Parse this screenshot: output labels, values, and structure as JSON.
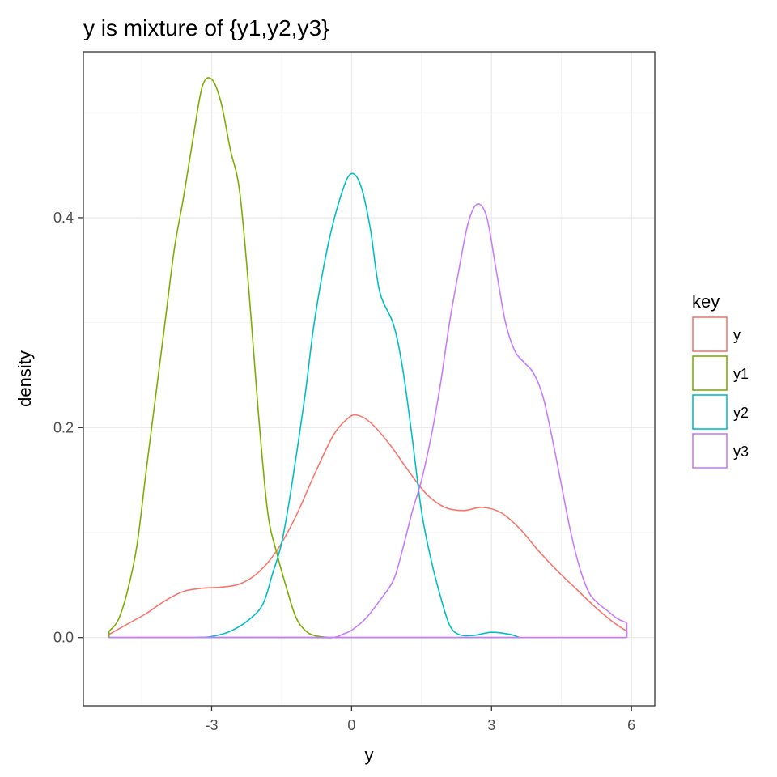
{
  "chart_data": {
    "type": "line",
    "title": "y is mixture of {y1,y2,y3}",
    "xlabel": "y",
    "ylabel": "density",
    "xlim": [
      -5.75,
      6.5
    ],
    "ylim": [
      -0.065,
      0.558
    ],
    "x_ticks": [
      -3,
      0,
      3,
      6
    ],
    "x_tick_labels": [
      "-3",
      "0",
      "3",
      "6"
    ],
    "y_ticks": [
      0.0,
      0.2,
      0.4
    ],
    "y_tick_labels": [
      "0.0",
      "0.2",
      "0.4"
    ],
    "grid": true,
    "legend": {
      "title": "key",
      "position": "right"
    },
    "series": [
      {
        "name": "y",
        "color": "#F8766D",
        "points": [
          [
            -5.2,
            0.003
          ],
          [
            -4.8,
            0.013
          ],
          [
            -4.4,
            0.023
          ],
          [
            -4.0,
            0.035
          ],
          [
            -3.6,
            0.044
          ],
          [
            -3.2,
            0.047
          ],
          [
            -2.8,
            0.048
          ],
          [
            -2.4,
            0.051
          ],
          [
            -2.0,
            0.062
          ],
          [
            -1.6,
            0.083
          ],
          [
            -1.2,
            0.115
          ],
          [
            -0.8,
            0.155
          ],
          [
            -0.4,
            0.192
          ],
          [
            -0.1,
            0.208
          ],
          [
            0.1,
            0.212
          ],
          [
            0.4,
            0.205
          ],
          [
            0.8,
            0.185
          ],
          [
            1.2,
            0.16
          ],
          [
            1.6,
            0.137
          ],
          [
            2.0,
            0.124
          ],
          [
            2.4,
            0.121
          ],
          [
            2.8,
            0.124
          ],
          [
            3.2,
            0.119
          ],
          [
            3.6,
            0.104
          ],
          [
            4.0,
            0.083
          ],
          [
            4.4,
            0.064
          ],
          [
            4.8,
            0.047
          ],
          [
            5.2,
            0.03
          ],
          [
            5.6,
            0.015
          ],
          [
            5.9,
            0.006
          ]
        ]
      },
      {
        "name": "y1",
        "color": "#7CAE00",
        "points": [
          [
            -5.2,
            0.006
          ],
          [
            -5.0,
            0.017
          ],
          [
            -4.8,
            0.045
          ],
          [
            -4.6,
            0.088
          ],
          [
            -4.4,
            0.16
          ],
          [
            -4.2,
            0.23
          ],
          [
            -4.0,
            0.3
          ],
          [
            -3.8,
            0.37
          ],
          [
            -3.6,
            0.42
          ],
          [
            -3.4,
            0.475
          ],
          [
            -3.2,
            0.525
          ],
          [
            -3.0,
            0.532
          ],
          [
            -2.8,
            0.51
          ],
          [
            -2.6,
            0.465
          ],
          [
            -2.4,
            0.425
          ],
          [
            -2.2,
            0.33
          ],
          [
            -2.0,
            0.215
          ],
          [
            -1.8,
            0.12
          ],
          [
            -1.6,
            0.08
          ],
          [
            -1.4,
            0.048
          ],
          [
            -1.2,
            0.02
          ],
          [
            -1.0,
            0.007
          ],
          [
            -0.8,
            0.002
          ],
          [
            -0.5,
            0.0
          ]
        ]
      },
      {
        "name": "y2",
        "color": "#00BFC4",
        "points": [
          [
            -3.3,
            0.0
          ],
          [
            -3.0,
            0.001
          ],
          [
            -2.6,
            0.006
          ],
          [
            -2.2,
            0.017
          ],
          [
            -1.9,
            0.032
          ],
          [
            -1.7,
            0.06
          ],
          [
            -1.5,
            0.09
          ],
          [
            -1.3,
            0.14
          ],
          [
            -1.0,
            0.23
          ],
          [
            -0.8,
            0.3
          ],
          [
            -0.5,
            0.375
          ],
          [
            -0.2,
            0.425
          ],
          [
            0.0,
            0.442
          ],
          [
            0.2,
            0.43
          ],
          [
            0.4,
            0.39
          ],
          [
            0.6,
            0.33
          ],
          [
            0.9,
            0.298
          ],
          [
            1.1,
            0.255
          ],
          [
            1.3,
            0.19
          ],
          [
            1.5,
            0.12
          ],
          [
            1.7,
            0.075
          ],
          [
            1.9,
            0.04
          ],
          [
            2.1,
            0.012
          ],
          [
            2.3,
            0.003
          ],
          [
            2.6,
            0.002
          ],
          [
            3.0,
            0.005
          ],
          [
            3.4,
            0.003
          ],
          [
            3.6,
            0.0
          ]
        ]
      },
      {
        "name": "y3",
        "color": "#C77CFF",
        "points": [
          [
            -5.2,
            0.0
          ],
          [
            -1.0,
            0.0
          ],
          [
            -0.4,
            0.0
          ],
          [
            -0.2,
            0.003
          ],
          [
            0.0,
            0.007
          ],
          [
            0.3,
            0.018
          ],
          [
            0.6,
            0.035
          ],
          [
            0.9,
            0.055
          ],
          [
            1.1,
            0.085
          ],
          [
            1.3,
            0.12
          ],
          [
            1.5,
            0.15
          ],
          [
            1.7,
            0.19
          ],
          [
            1.9,
            0.24
          ],
          [
            2.1,
            0.3
          ],
          [
            2.3,
            0.35
          ],
          [
            2.5,
            0.395
          ],
          [
            2.7,
            0.413
          ],
          [
            2.9,
            0.4
          ],
          [
            3.1,
            0.35
          ],
          [
            3.3,
            0.3
          ],
          [
            3.5,
            0.273
          ],
          [
            3.7,
            0.262
          ],
          [
            3.9,
            0.252
          ],
          [
            4.1,
            0.23
          ],
          [
            4.3,
            0.19
          ],
          [
            4.5,
            0.145
          ],
          [
            4.7,
            0.1
          ],
          [
            4.9,
            0.065
          ],
          [
            5.1,
            0.042
          ],
          [
            5.3,
            0.032
          ],
          [
            5.5,
            0.025
          ],
          [
            5.7,
            0.018
          ],
          [
            5.9,
            0.014
          ]
        ]
      }
    ]
  }
}
